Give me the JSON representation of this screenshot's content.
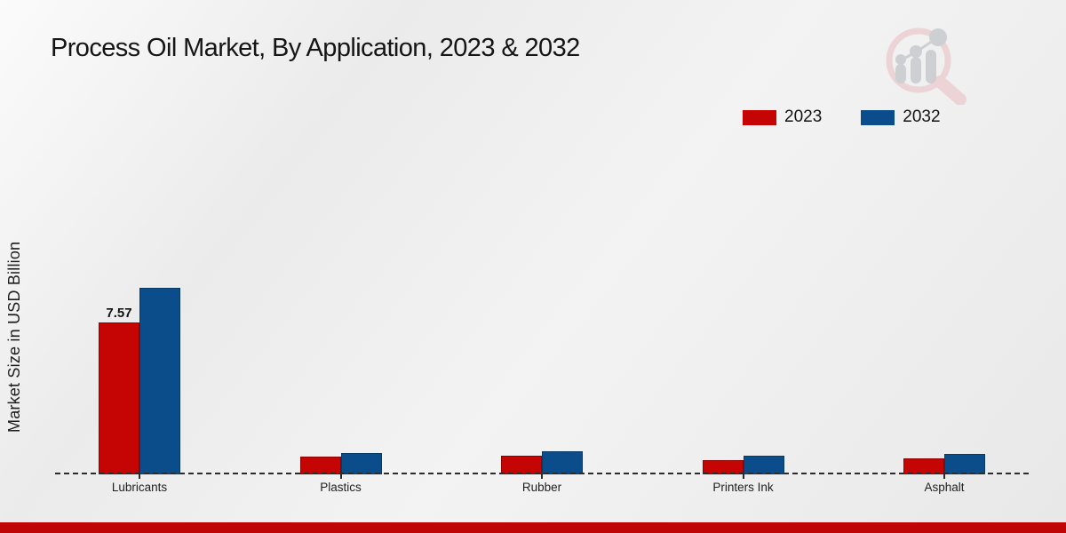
{
  "title": "Process Oil Market, By Application, 2023 & 2032",
  "chart_data": {
    "type": "bar",
    "categories": [
      "Lubricants",
      "Plastics",
      "Rubber",
      "Printers Ink",
      "Asphalt"
    ],
    "series": [
      {
        "name": "2023",
        "color": "#c50404",
        "border_color": "#8e0202",
        "values": [
          7.57,
          0.89,
          0.93,
          0.71,
          0.8
        ]
      },
      {
        "name": "2032",
        "color": "#0b4c8a",
        "border_color": "#093a66",
        "values": [
          9.3,
          1.06,
          1.15,
          0.93,
          1.02
        ]
      }
    ],
    "annotations": [
      {
        "series": 0,
        "category": 0,
        "text": "7.57"
      }
    ],
    "title": "Process Oil Market, By Application, 2023 & 2032",
    "xlabel": "",
    "ylabel": "Market Size in USD Billion",
    "ylim": [
      0,
      10
    ],
    "grid": false,
    "baseline_style": "dashed",
    "legend_position": "top-right"
  },
  "colors": {
    "footer_bar": "#bf0505",
    "watermark_pink": "#eccfd2",
    "watermark_gray": "#c9cacd"
  }
}
